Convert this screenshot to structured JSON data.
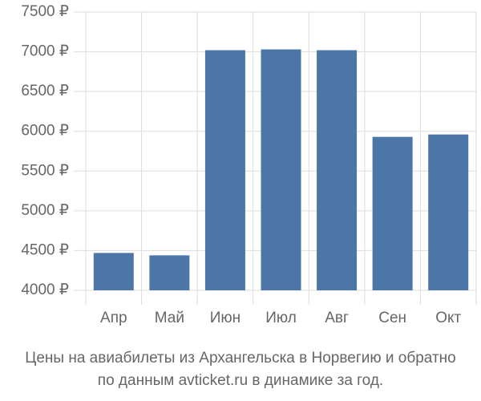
{
  "chart_data": {
    "type": "bar",
    "title": "Цены на авиабилеты из Архангельска в Норвегию и обратно",
    "subtitle": "по данным avticket.ru в динамике за год.",
    "categories": [
      "Апр",
      "Май",
      "Июн",
      "Июл",
      "Авг",
      "Сен",
      "Окт"
    ],
    "values": [
      4470,
      4440,
      7020,
      7030,
      7020,
      5930,
      5960
    ],
    "color": "#4c76a8",
    "ylim": [
      4000,
      7500
    ],
    "yticks": [
      {
        "value": 4000,
        "label": "4000 ₽"
      },
      {
        "value": 4500,
        "label": "4500 ₽"
      },
      {
        "value": 5000,
        "label": "5000 ₽"
      },
      {
        "value": 5500,
        "label": "5500 ₽"
      },
      {
        "value": 6000,
        "label": "6000 ₽"
      },
      {
        "value": 6500,
        "label": "6500 ₽"
      },
      {
        "value": 7000,
        "label": "7000 ₽"
      },
      {
        "value": 7500,
        "label": "7500 ₽"
      }
    ],
    "grid": true
  }
}
